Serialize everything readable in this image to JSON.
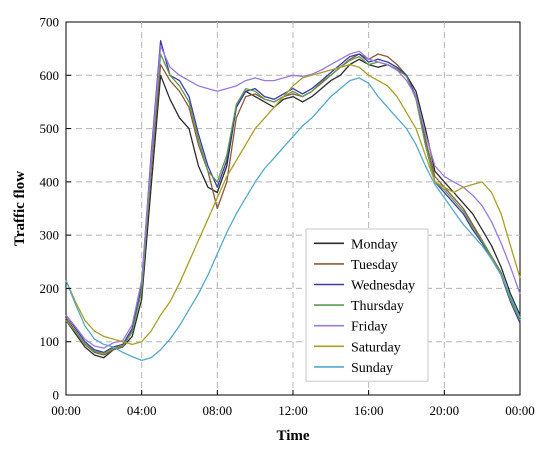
{
  "chart_data": {
    "type": "line",
    "xlabel": "Time",
    "ylabel": "Traffic flow",
    "x_ticks": [
      "00:00",
      "04:00",
      "08:00",
      "12:00",
      "16:00",
      "20:00",
      "00:00"
    ],
    "xlim": [
      0,
      24
    ],
    "ylim": [
      0,
      700
    ],
    "y_ticks": [
      0,
      100,
      200,
      300,
      400,
      500,
      600,
      700
    ],
    "grid": "dashed",
    "legend_position": "lower-right",
    "x": [
      0,
      0.5,
      1,
      1.5,
      2,
      2.5,
      3,
      3.5,
      4,
      4.5,
      5,
      5.5,
      6,
      6.5,
      7,
      7.5,
      8,
      8.5,
      9,
      9.5,
      10,
      10.5,
      11,
      11.5,
      12,
      12.5,
      13,
      13.5,
      14,
      14.5,
      15,
      15.5,
      16,
      16.5,
      17,
      17.5,
      18,
      18.5,
      19,
      19.5,
      20,
      20.5,
      21,
      21.5,
      22,
      22.5,
      23,
      23.5,
      24
    ],
    "series": [
      {
        "name": "Monday",
        "color": "#2b2b2b",
        "values": [
          140,
          115,
          90,
          75,
          70,
          85,
          90,
          110,
          180,
          390,
          600,
          555,
          520,
          500,
          430,
          390,
          380,
          430,
          540,
          570,
          560,
          550,
          540,
          555,
          560,
          550,
          560,
          575,
          590,
          600,
          620,
          630,
          620,
          615,
          620,
          610,
          600,
          570,
          500,
          420,
          400,
          380,
          360,
          340,
          310,
          280,
          240,
          190,
          150
        ]
      },
      {
        "name": "Tuesday",
        "color": "#8a5a3c",
        "values": [
          145,
          120,
          95,
          80,
          75,
          85,
          90,
          120,
          200,
          420,
          620,
          590,
          570,
          540,
          470,
          420,
          350,
          400,
          520,
          560,
          565,
          555,
          550,
          560,
          565,
          560,
          570,
          585,
          600,
          615,
          630,
          640,
          630,
          640,
          635,
          620,
          600,
          560,
          480,
          410,
          390,
          370,
          350,
          320,
          290,
          260,
          230,
          180,
          140
        ]
      },
      {
        "name": "Wednesday",
        "color": "#3a3aa8",
        "values": [
          150,
          125,
          100,
          85,
          80,
          90,
          95,
          125,
          210,
          450,
          665,
          600,
          590,
          560,
          490,
          430,
          390,
          440,
          540,
          570,
          575,
          560,
          555,
          565,
          575,
          565,
          575,
          590,
          605,
          620,
          635,
          640,
          625,
          630,
          625,
          615,
          600,
          560,
          470,
          400,
          380,
          360,
          340,
          310,
          285,
          255,
          225,
          175,
          135
        ]
      },
      {
        "name": "Thursday",
        "color": "#5f9a4e",
        "values": [
          140,
          118,
          96,
          82,
          78,
          88,
          92,
          118,
          195,
          430,
          640,
          600,
          580,
          550,
          480,
          420,
          400,
          450,
          545,
          575,
          570,
          555,
          550,
          560,
          570,
          560,
          570,
          588,
          600,
          615,
          628,
          635,
          620,
          625,
          620,
          612,
          598,
          555,
          470,
          400,
          385,
          365,
          345,
          315,
          288,
          258,
          228,
          178,
          140
        ]
      },
      {
        "name": "Friday",
        "color": "#9a7ad8",
        "values": [
          150,
          128,
          105,
          92,
          88,
          98,
          102,
          132,
          215,
          440,
          655,
          615,
          600,
          590,
          580,
          575,
          570,
          575,
          580,
          590,
          595,
          590,
          590,
          595,
          600,
          598,
          602,
          610,
          620,
          630,
          640,
          645,
          630,
          625,
          620,
          610,
          590,
          560,
          490,
          430,
          410,
          400,
          390,
          375,
          355,
          325,
          285,
          240,
          190
        ]
      },
      {
        "name": "Saturday",
        "color": "#a8a028",
        "values": [
          215,
          175,
          140,
          120,
          110,
          105,
          100,
          95,
          100,
          120,
          150,
          175,
          210,
          250,
          290,
          330,
          370,
          410,
          440,
          470,
          500,
          520,
          540,
          560,
          580,
          595,
          600,
          605,
          610,
          615,
          620,
          615,
          600,
          590,
          580,
          560,
          530,
          500,
          450,
          400,
          390,
          380,
          390,
          395,
          400,
          380,
          340,
          280,
          220
        ]
      },
      {
        "name": "Sunday",
        "color": "#55a8c8",
        "values": [
          215,
          170,
          130,
          105,
          95,
          90,
          80,
          72,
          65,
          70,
          85,
          105,
          130,
          160,
          190,
          225,
          265,
          305,
          340,
          370,
          400,
          425,
          445,
          465,
          485,
          505,
          520,
          540,
          560,
          575,
          590,
          595,
          585,
          560,
          540,
          520,
          500,
          470,
          430,
          395,
          370,
          345,
          320,
          300,
          280,
          255,
          225,
          185,
          145
        ]
      }
    ]
  }
}
